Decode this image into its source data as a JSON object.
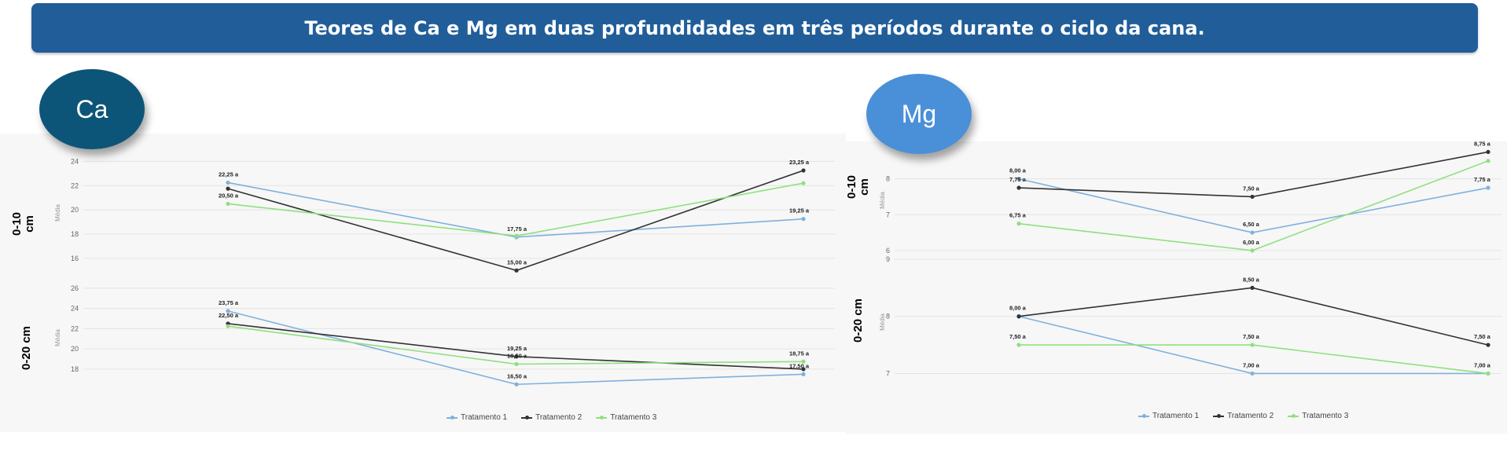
{
  "header": {
    "title": "Teores de Ca e Mg em duas profundidades em três períodos durante o ciclo da cana."
  },
  "colors": {
    "banner": "#215e99",
    "tratamento_1": "#7fb1dd",
    "tratamento_2": "#333333",
    "tratamento_3": "#8fe07f"
  },
  "ca": {
    "badge": "Ca",
    "depth_top": "0-10 cm",
    "depth_bottom": "0-20 cm",
    "legend": [
      "Tratamento 1",
      "Tratamento 2",
      "Tratamento 3"
    ]
  },
  "mg": {
    "badge": "Mg",
    "depth_top": "0-10 cm",
    "depth_bottom": "0-20 cm",
    "legend": [
      "Tratamento 1",
      "Tratamento 2",
      "Tratamento 3"
    ]
  },
  "chart_data": [
    {
      "id": "ca_0_10",
      "type": "line",
      "ylabel": "Média",
      "ylim": [
        14.5,
        25
      ],
      "yticks": [
        16,
        18,
        20,
        22,
        24
      ],
      "x": [
        1,
        2,
        3
      ],
      "series": [
        {
          "name": "Tratamento 1",
          "color": "#7fb1dd",
          "values": [
            22.25,
            17.75,
            19.25
          ],
          "labels": [
            "22,25 a",
            "17,75 a",
            "19,25 a"
          ]
        },
        {
          "name": "Tratamento 2",
          "color": "#333333",
          "values": [
            21.75,
            15.0,
            23.25
          ],
          "labels": [
            "",
            "15,00 a",
            "23,25 a"
          ]
        },
        {
          "name": "Tratamento 3",
          "color": "#8fe07f",
          "values": [
            20.5,
            17.85,
            22.2
          ],
          "labels": [
            "20,50 a",
            "",
            ""
          ]
        }
      ]
    },
    {
      "id": "ca_0_20",
      "type": "line",
      "ylabel": "Média",
      "ylim": [
        15.2,
        27
      ],
      "yticks": [
        18,
        20,
        22,
        24,
        26
      ],
      "x": [
        1,
        2,
        3
      ],
      "series": [
        {
          "name": "Tratamento 1",
          "color": "#7fb1dd",
          "values": [
            23.75,
            16.5,
            17.5
          ],
          "labels": [
            "23,75 a",
            "16,50 a",
            "17,50 a"
          ]
        },
        {
          "name": "Tratamento 2",
          "color": "#333333",
          "values": [
            22.5,
            19.25,
            18.0
          ],
          "labels": [
            "22,50 a",
            "19,25 a",
            ""
          ]
        },
        {
          "name": "Tratamento 3",
          "color": "#8fe07f",
          "values": [
            22.25,
            18.5,
            18.75
          ],
          "labels": [
            "",
            "18,50 a",
            "18,75 a"
          ]
        }
      ]
    },
    {
      "id": "mg_0_10",
      "type": "line",
      "ylabel": "Média",
      "ylim": [
        5.8,
        9.0
      ],
      "yticks": [
        6,
        7,
        8
      ],
      "x": [
        1,
        2,
        3
      ],
      "series": [
        {
          "name": "Tratamento 1",
          "color": "#7fb1dd",
          "values": [
            8.0,
            6.5,
            7.75
          ],
          "labels": [
            "8,00 a",
            "6,50 a",
            "7,75 a"
          ]
        },
        {
          "name": "Tratamento 2",
          "color": "#333333",
          "values": [
            7.75,
            7.5,
            8.75
          ],
          "labels": [
            "7,75 a",
            "7,50 a",
            "8,75 a"
          ]
        },
        {
          "name": "Tratamento 3",
          "color": "#8fe07f",
          "values": [
            6.75,
            6.0,
            8.5
          ],
          "labels": [
            "6,75 a",
            "6,00 a",
            ""
          ]
        }
      ]
    },
    {
      "id": "mg_0_20",
      "type": "line",
      "ylabel": "Média",
      "ylim": [
        6.8,
        9.0
      ],
      "yticks": [
        7,
        8,
        9
      ],
      "x": [
        1,
        2,
        3
      ],
      "series": [
        {
          "name": "Tratamento 1",
          "color": "#7fb1dd",
          "values": [
            8.0,
            7.0,
            7.0
          ],
          "labels": [
            "",
            "7,00 a",
            "7,00 a"
          ]
        },
        {
          "name": "Tratamento 2",
          "color": "#333333",
          "values": [
            8.0,
            8.5,
            7.5
          ],
          "labels": [
            "8,00 a",
            "8,50 a",
            "7,50 a"
          ]
        },
        {
          "name": "Tratamento 3",
          "color": "#8fe07f",
          "values": [
            7.5,
            7.5,
            7.0
          ],
          "labels": [
            "7,50 a",
            "7,50 a",
            ""
          ]
        }
      ]
    }
  ]
}
